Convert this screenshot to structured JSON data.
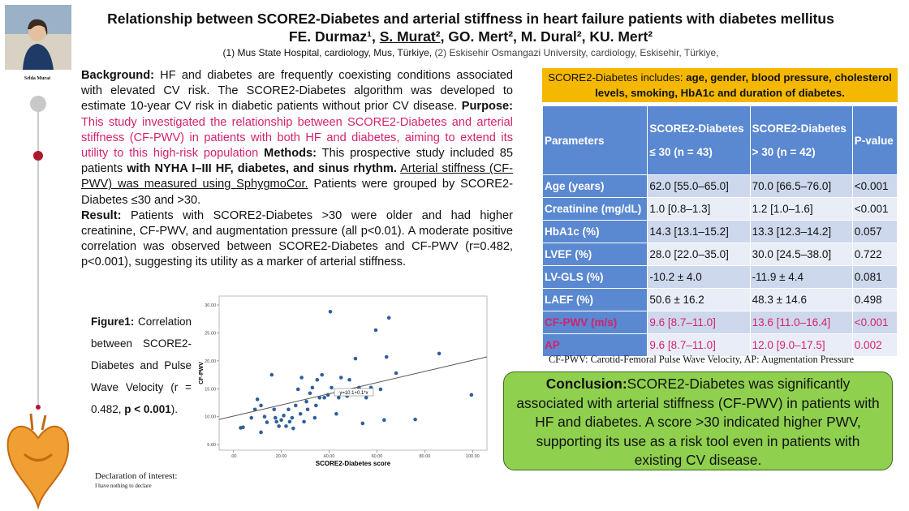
{
  "header": {
    "title": "Relationship between SCORE2-Diabetes and arterial stiffness in heart failure patients with diabetes mellitus",
    "authors": [
      {
        "text": "FE. Durmaz¹, ",
        "style": "normal"
      },
      {
        "text": "S. Murat²",
        "style": "underline"
      },
      {
        "text": ", GO. Mert², M. Dural², KU. Mert²",
        "style": "normal"
      }
    ],
    "affiliations": [
      {
        "text": "(1) Mus State Hospital, cardiology, Mus, Türkiye, ",
        "style": "normal"
      },
      {
        "text": "(2) Eskisehir Osmangazi University, cardiology, Eskisehir, Türkiye,",
        "style": "muted"
      }
    ]
  },
  "photo_caption": "Selda Murat",
  "abstract": [
    [
      {
        "text": "Background:",
        "style": "bold"
      },
      {
        "text": " HF and diabetes are frequently coexisting conditions associated with elevated CV risk. The SCORE2-Diabetes algorithm was developed to estimate 10-year CV risk in diabetic patients without prior CV disease. ",
        "style": "normal"
      },
      {
        "text": "Purpose:",
        "style": "bold"
      },
      {
        "text": " This study investigated the relationship between SCORE2-Diabetes and arterial stiffness (CF-PWV) in patients with both HF and diabetes, aiming to extend its utility to this high-risk population",
        "style": "pink"
      },
      {
        "text": " Methods:",
        "style": "bold"
      },
      {
        "text": " This prospective study included 85 patients ",
        "style": "normal"
      },
      {
        "text": "with NYHA I–III HF, diabetes, and sinus rhythm.",
        "style": "bold"
      },
      {
        "text": " ",
        "style": "normal"
      },
      {
        "text": "Arterial stiffness (CF-PWV) was measured using SphygmoCor.",
        "style": "underline"
      },
      {
        "text": " Patients were grouped by SCORE2-Diabetes ≤30 and >30.",
        "style": "normal"
      }
    ],
    [
      {
        "text": "Result:",
        "style": "bold"
      },
      {
        "text": " Patients with SCORE2-Diabetes >30 were older and had higher creatinine, CF-PWV, and augmentation pressure (all p<0.01). A moderate positive correlation was observed between SCORE2-Diabetes and CF-PWV (r=0.482, p<0.001), suggesting its utility as a marker of arterial stiffness.",
        "style": "normal"
      }
    ]
  ],
  "figure_caption": [
    {
      "text": "Figure1:",
      "style": "bold"
    },
    {
      "text": " Correlation between SCORE2-Diabetes and Pulse Wave Velocity (r = 0.482, ",
      "style": "normal"
    },
    {
      "text": "p < 0.001",
      "style": "bold"
    },
    {
      "text": ").",
      "style": "normal"
    }
  ],
  "declaration": {
    "title": "Declaration of interest:",
    "text": "I have nothing to declare"
  },
  "chart_data": {
    "type": "scatter",
    "xlabel": "SCORE2-Diabetes score",
    "ylabel": "CF-PWV",
    "annotation": "y=10.1+0.1*x",
    "color": "#2f5f9e",
    "x": [
      4,
      3,
      7.5,
      9,
      10,
      11.5,
      11.5,
      13,
      14,
      16,
      17,
      17.5,
      18,
      19,
      20,
      21,
      22,
      23,
      23.5,
      24.5,
      25,
      26,
      27,
      28,
      28.5,
      29.5,
      30.5,
      31,
      32,
      33,
      34,
      34.5,
      35,
      36,
      37,
      38,
      39.5,
      40.5,
      41,
      43,
      44,
      45,
      47.5,
      48.5,
      51,
      52.5,
      54,
      55.5,
      57.5,
      59.5,
      61.5,
      63,
      64,
      65,
      68,
      76,
      86,
      99.5
    ],
    "y": [
      8.1,
      8,
      9.8,
      11.3,
      13.1,
      12,
      7.2,
      10,
      9,
      17.5,
      11.3,
      9.8,
      9.1,
      8.3,
      9.4,
      10.2,
      8.3,
      11.3,
      9.1,
      9.8,
      7.9,
      12,
      14.9,
      10.5,
      17,
      9.1,
      12.7,
      11.3,
      14.2,
      15.2,
      9.8,
      12,
      16.6,
      13.4,
      17.5,
      13.4,
      13.9,
      28.8,
      15.2,
      10.5,
      13.4,
      17,
      13.7,
      16.6,
      20.4,
      15.2,
      8.8,
      13.4,
      15.2,
      25.5,
      14.9,
      9.4,
      20.7,
      27.7,
      17.8,
      9.5,
      21.3,
      13.9
    ],
    "fit": {
      "x": [
        -6,
        106
      ],
      "y": [
        9.5,
        20.7
      ]
    },
    "xlim": [
      -6,
      106
    ],
    "ylim": [
      4,
      31.6
    ],
    "xticks": [
      {
        "value": 0,
        "label": ".00"
      },
      {
        "value": 20,
        "label": "20.00"
      },
      {
        "value": 40,
        "label": "40.00"
      },
      {
        "value": 60,
        "label": "60.00"
      },
      {
        "value": 80,
        "label": "80.00"
      },
      {
        "value": 100,
        "label": "100.00"
      }
    ],
    "yticks": [
      {
        "value": 5,
        "label": "5.00"
      },
      {
        "value": 10,
        "label": "10.00"
      },
      {
        "value": 15,
        "label": "15.00"
      },
      {
        "value": 20,
        "label": "20.00"
      },
      {
        "value": 25,
        "label": "25.00"
      },
      {
        "value": 30,
        "label": "30.00"
      }
    ]
  },
  "banner": [
    {
      "text": "SCORE2-Diabetes  includes: ",
      "style": "normal"
    },
    {
      "text": "age, gender, blood pressure, cholesterol levels, smoking, HbA1c and duration of diabetes.",
      "style": "bold"
    }
  ],
  "table": {
    "headers": [
      [
        "Parameters"
      ],
      [
        "SCORE2-Diabetes",
        "≤ 30 (n = 43)"
      ],
      [
        "SCORE2-Diabetes",
        "> 30 (n = 42)"
      ],
      [
        "P-value"
      ]
    ],
    "rows": [
      {
        "cells": [
          "Age (years)",
          "62.0 [55.0–65.0]",
          "70.0 [66.5–76.0]",
          "<0.001"
        ],
        "highlight": false
      },
      {
        "cells": [
          "Creatinine (mg/dL)",
          "1.0 [0.8–1.3]",
          "1.2 [1.0–1.6]",
          "<0.001"
        ],
        "highlight": false
      },
      {
        "cells": [
          "HbA1c (%)",
          "14.3 [13.1–15.2]",
          "13.3 [12.3–14.2]",
          "0.057"
        ],
        "highlight": false
      },
      {
        "cells": [
          "LVEF (%)",
          "28.0 [22.0–35.0]",
          "30.0 [24.5–38.0]",
          "0.722"
        ],
        "highlight": false
      },
      {
        "cells": [
          "LV-GLS (%)",
          "-10.2 ± 4.0",
          "-11.9 ± 4.4",
          "0.081"
        ],
        "highlight": false
      },
      {
        "cells": [
          "LAEF (%)",
          "50.6 ± 16.2",
          "48.3 ± 14.6",
          "0.498"
        ],
        "highlight": false
      },
      {
        "cells": [
          "CF-PWV (m/s)",
          "9.6 [8.7–11.0]",
          "13.6 [11.0–16.4]",
          "<0.001"
        ],
        "highlight": true
      },
      {
        "cells": [
          "AP",
          "9.6 [8.7–11.0]",
          "12.0 [9.0–17.5]",
          "0.002"
        ],
        "highlight": true
      }
    ],
    "footnote": "CF-PWV: Carotid-Femoral Pulse Wave Velocity, AP: Augmentation Pressure"
  },
  "conclusion": [
    {
      "text": "Conclusion:",
      "style": "bold"
    },
    {
      "text": "SCORE2-Diabetes was significantly associated with arterial stiffness (CF-PWV) in patients with HF and diabetes. A score >30 indicated higher PWV, supporting its use as a risk tool even in patients with existing CV disease.",
      "style": "normal"
    }
  ]
}
